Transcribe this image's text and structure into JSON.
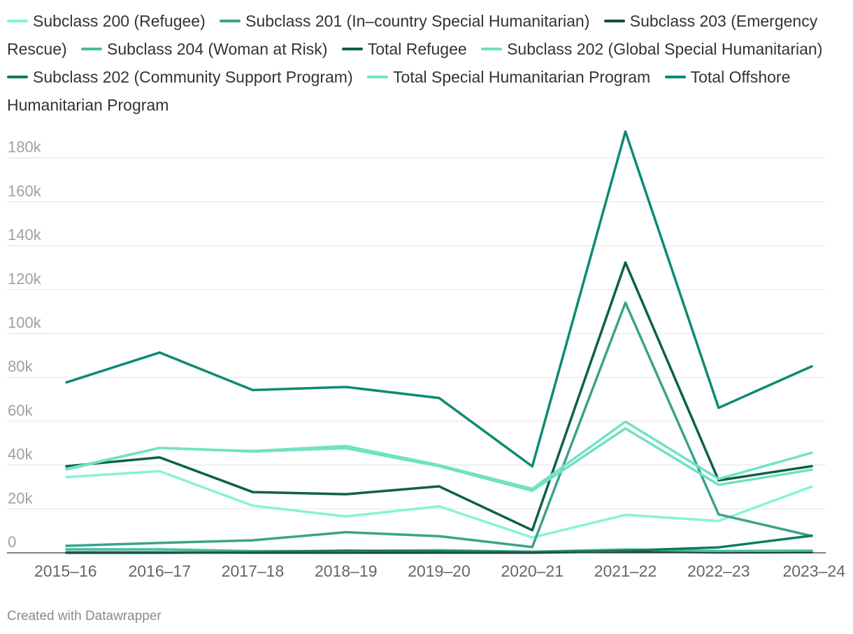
{
  "chart_data": {
    "type": "line",
    "title": "",
    "xlabel": "",
    "ylabel": "",
    "categories": [
      "2015–16",
      "2016–17",
      "2017–18",
      "2018–19",
      "2019–20",
      "2020–21",
      "2021–22",
      "2022–23",
      "2023–24"
    ],
    "ylim": [
      0,
      190000
    ],
    "yticks": [
      0,
      20000,
      40000,
      60000,
      80000,
      100000,
      120000,
      140000,
      160000,
      180000
    ],
    "ytick_labels": [
      "0",
      "20k",
      "40k",
      "60k",
      "80k",
      "100k",
      "120k",
      "140k",
      "160k",
      "180k"
    ],
    "grid": true,
    "legend_position": "top",
    "series": [
      {
        "name": "Subclass 200 (Refugee)",
        "color": "#86f4d6",
        "values": [
          34500,
          37200,
          21500,
          16600,
          21200,
          7000,
          17300,
          14500,
          30200
        ]
      },
      {
        "name": "Subclass 201 (In–country Special Humanitarian)",
        "color": "#3aa38b",
        "values": [
          3200,
          4500,
          5700,
          9400,
          7600,
          2600,
          114000,
          17500,
          7700
        ]
      },
      {
        "name": "Subclass 203 (Emergency Rescue)",
        "color": "#0c4f3d",
        "values": [
          200,
          200,
          100,
          100,
          100,
          50,
          700,
          200,
          300
        ]
      },
      {
        "name": "Subclass 204 (Woman at Risk)",
        "color": "#45bd9f",
        "values": [
          1600,
          1600,
          800,
          800,
          1200,
          500,
          1500,
          800,
          1000
        ]
      },
      {
        "name": "Total Refugee",
        "color": "#0d604a",
        "values": [
          39500,
          43500,
          27700,
          26700,
          30300,
          10300,
          132300,
          33000,
          39500
        ]
      },
      {
        "name": "Subclass 202 (Global Special Humanitarian)",
        "color": "#6fe0c2",
        "values": [
          38000,
          47800,
          46200,
          47700,
          39500,
          28300,
          56700,
          31000,
          37900
        ]
      },
      {
        "name": "Subclass 202 (Community Support Program)",
        "color": "#107a5e",
        "values": [
          0,
          0,
          300,
          1000,
          700,
          300,
          1000,
          2500,
          7800
        ]
      },
      {
        "name": "Total Special Humanitarian Program",
        "color": "#70e3c5",
        "values": [
          38300,
          47800,
          46400,
          48700,
          40000,
          29200,
          59800,
          33700,
          45600
        ]
      },
      {
        "name": "Total Offshore Humanitarian Program",
        "color": "#0e8a72",
        "values": [
          77700,
          91300,
          74200,
          75600,
          70600,
          39400,
          192000,
          66100,
          85000
        ]
      }
    ]
  },
  "footer": {
    "credit": "Created with Datawrapper"
  }
}
